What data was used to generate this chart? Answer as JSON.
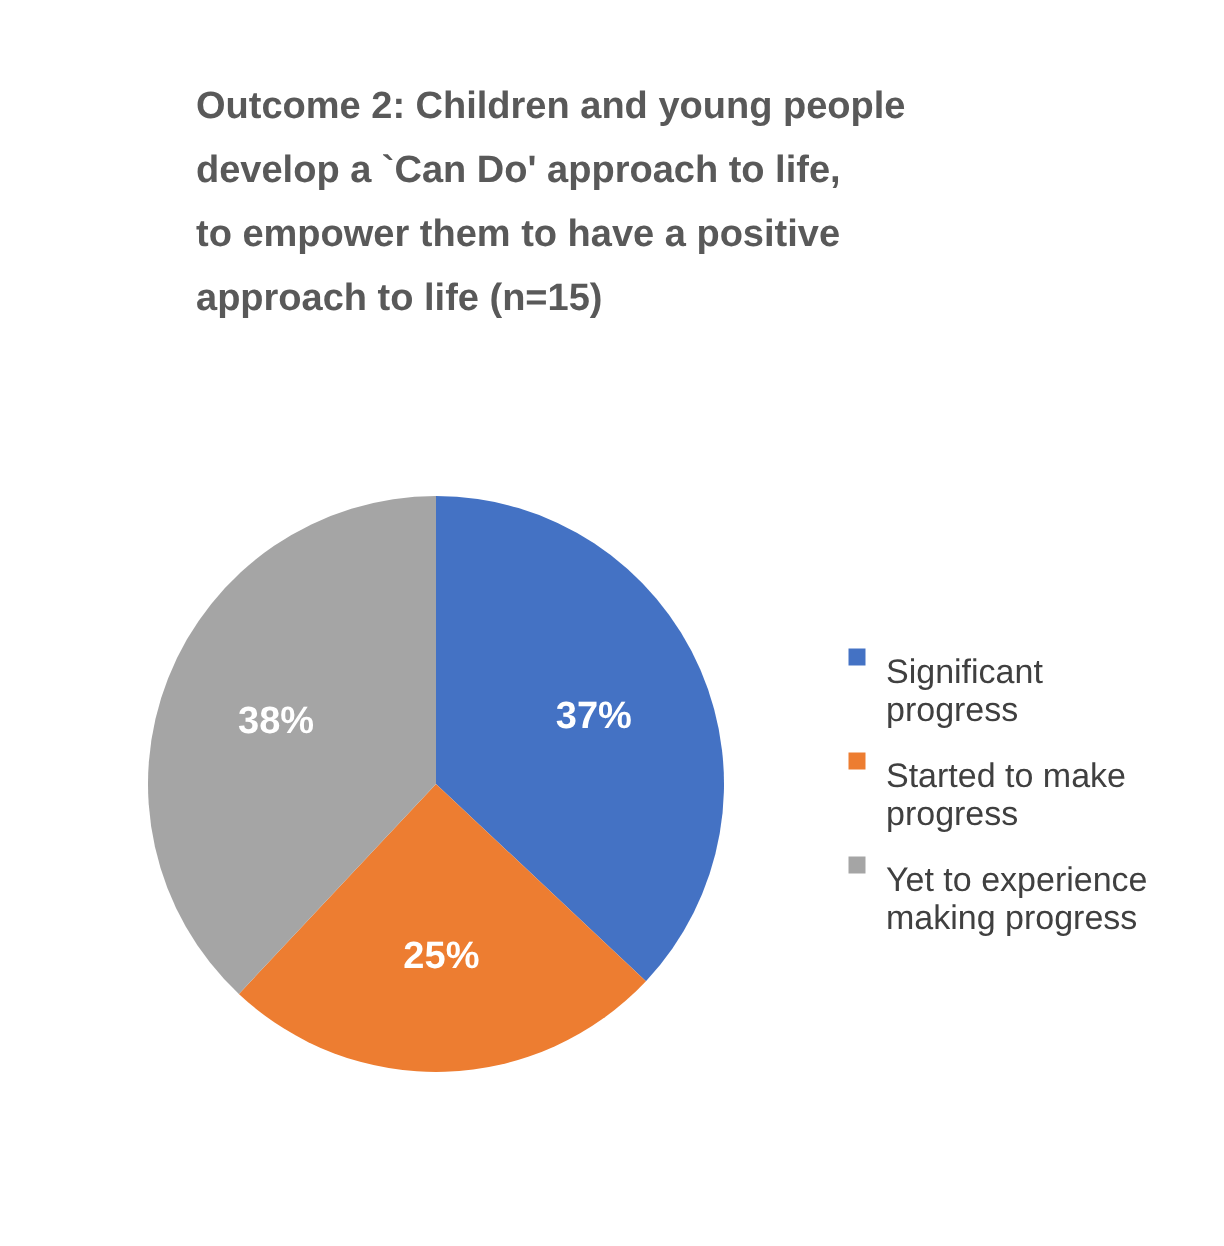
{
  "chart_data": {
    "type": "pie",
    "title": "Outcome 2: Children and young people  develop a `Can Do' approach to life, to empower them to have a positive approach to life (n=15)",
    "categories": [
      "Significant progress",
      "Started to make progress",
      "Yet to experience making progress"
    ],
    "values": [
      37,
      25,
      38
    ],
    "colors": [
      "#4472c4",
      "#ed7d31",
      "#a5a5a5"
    ],
    "value_labels": [
      "37%",
      "25%",
      "38%"
    ],
    "legend": "right"
  }
}
